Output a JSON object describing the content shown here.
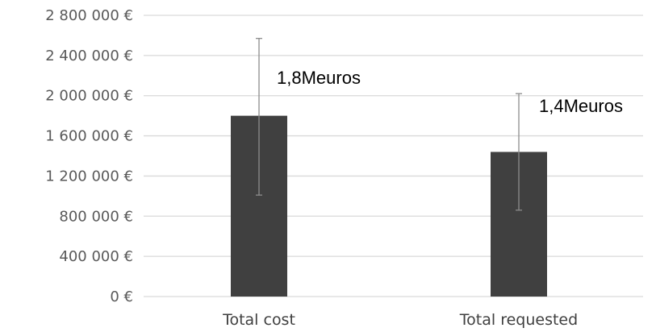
{
  "chart_data": {
    "type": "bar",
    "categories": [
      "Total cost",
      "Total requested"
    ],
    "values": [
      1800000,
      1440000
    ],
    "error_bars": [
      {
        "low": 1010000,
        "high": 2570000
      },
      {
        "low": 860000,
        "high": 2020000
      }
    ],
    "data_labels": [
      "1,8Meuros",
      "1,4Meuros"
    ],
    "yticks": [
      0,
      400000,
      800000,
      1200000,
      1600000,
      2000000,
      2400000,
      2800000
    ],
    "ytick_labels": [
      "0 €",
      "400 000 €",
      "800 000 €",
      "1 200 000 €",
      "1 600 000 €",
      "2 000 000 €",
      "2 400 000 €",
      "2 800 000 €"
    ],
    "ylim": [
      0,
      2800000
    ],
    "grid": true,
    "legend": "none",
    "title": "",
    "xlabel": "",
    "ylabel": "",
    "colors": {
      "bar": "#404040",
      "grid": "#d9d9d9",
      "error_bar": "#8c8c8c"
    }
  }
}
